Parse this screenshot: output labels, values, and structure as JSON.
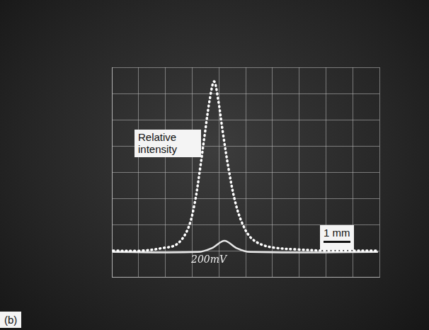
{
  "chart_data": {
    "type": "line",
    "annotations": [
      "Relative intensity",
      "200mV",
      "1 mm"
    ],
    "panel_label": "(b)",
    "series": [
      {
        "color": "#ffffff",
        "line_style": "dotted",
        "x": [
          0.05,
          1.1,
          1.9,
          2.42,
          2.82,
          3.08,
          3.29,
          3.47,
          3.66,
          3.82,
          3.97,
          4.16,
          4.37,
          4.61,
          4.87,
          5.18,
          5.58,
          6.1,
          6.89,
          7.95,
          9.0,
          9.92
        ],
        "values": [
          1.0,
          1.0,
          1.1,
          1.24,
          1.78,
          2.73,
          4.08,
          5.43,
          6.78,
          7.46,
          6.78,
          5.43,
          4.08,
          2.86,
          2.05,
          1.51,
          1.24,
          1.11,
          1.05,
          1.0,
          1.0,
          1.0
        ]
      },
      {
        "color": "#e6e6e6",
        "line_style": "solid",
        "x": [
          0.05,
          3.21,
          3.74,
          4.21,
          4.66,
          5.18,
          9.92
        ],
        "values": [
          0.95,
          0.95,
          1.1,
          1.38,
          1.1,
          0.95,
          0.95
        ]
      }
    ],
    "xlim": [
      0,
      10
    ],
    "xticks": [
      0,
      1,
      2,
      3,
      4,
      5,
      6,
      7,
      8,
      9,
      10
    ],
    "ylim": [
      0,
      8
    ],
    "yticks": [
      0,
      1,
      2,
      3,
      4,
      5,
      6,
      7,
      8
    ],
    "grid": true,
    "tick_labels": false
  }
}
